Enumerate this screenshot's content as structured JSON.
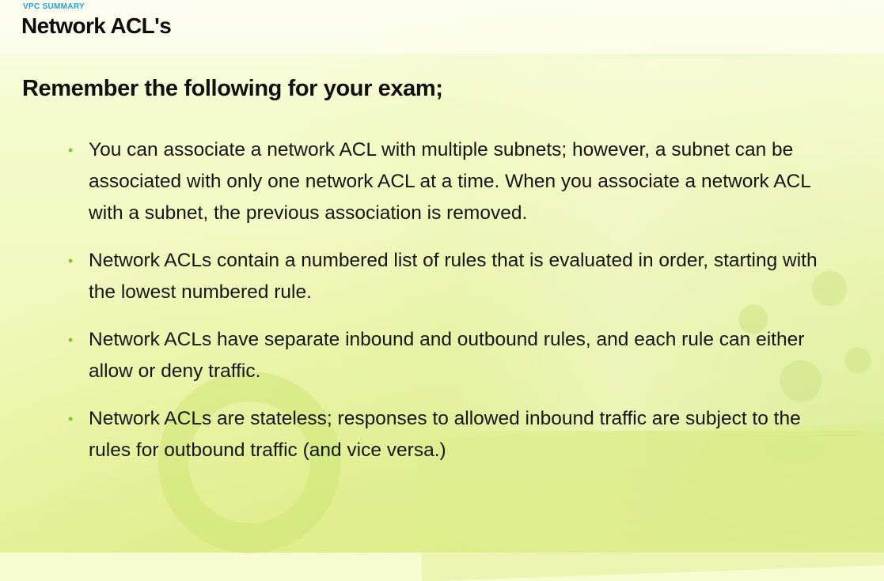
{
  "slide": {
    "eyebrow": "VPC SUMMARY",
    "title": "Network ACL's",
    "subtitle": "Remember the following for your exam;",
    "bullet_char": "•",
    "accent_color": "#86c232",
    "eyebrow_color": "#1ea0e0",
    "bullets": [
      "You can associate a network ACL with multiple subnets; however, a subnet can be associated with only one network ACL at a time. When you associate a network ACL with a subnet, the previous association is removed.",
      "Network ACLs contain a numbered list of rules that is evaluated in order, starting with the lowest numbered rule.",
      "Network ACLs have separate inbound and outbound rules, and each rule can either allow or deny traffic.",
      "Network ACLs are stateless; responses to allowed inbound traffic are subject to the rules for outbound traffic (and vice versa.)"
    ]
  }
}
